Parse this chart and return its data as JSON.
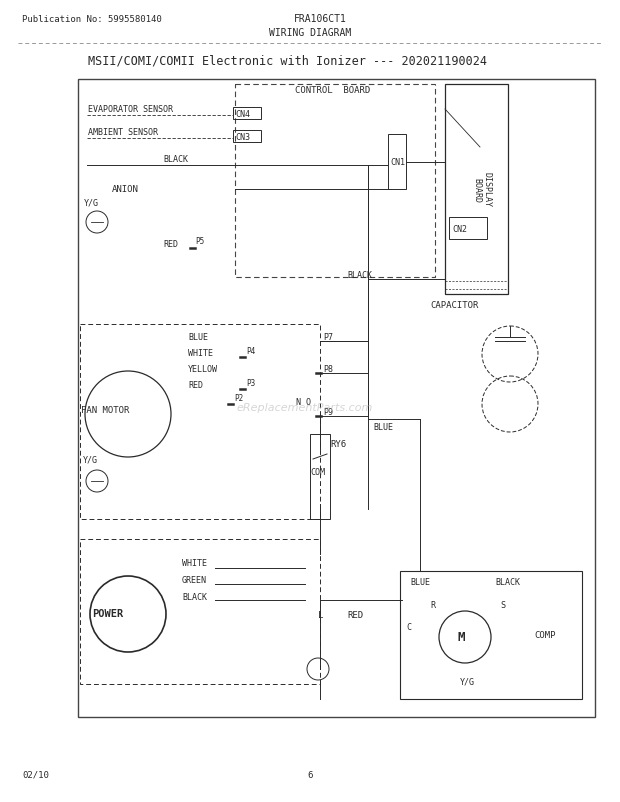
{
  "title": "MSII/COMI/COMII Electronic with Ionizer --- 202021190024",
  "header_left": "Publication No: 5995580140",
  "header_center": "FRA106CT1",
  "header_sub": "WIRING DIAGRAM",
  "footer_left": "02/10",
  "footer_center": "6",
  "bg_color": "#ffffff",
  "text_color": "#2a2a2a",
  "watermark": "eReplacementParts.com"
}
